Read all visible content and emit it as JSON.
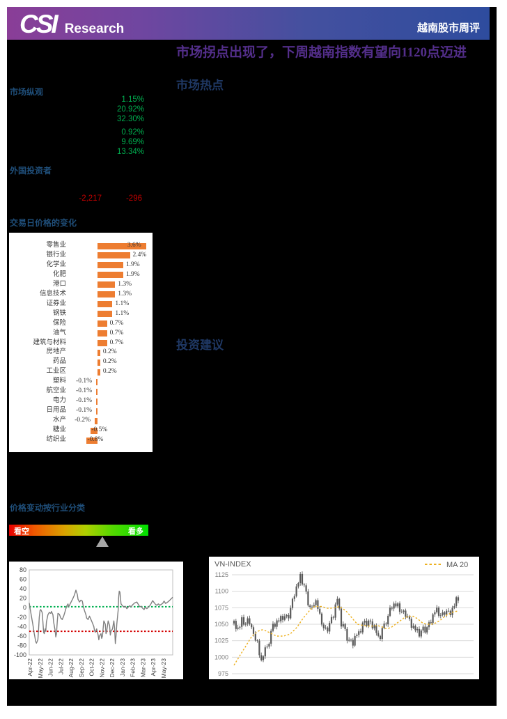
{
  "header": {
    "logo_text": "CSI",
    "logo_sub": "Research",
    "right_title": "越南股市周评"
  },
  "main": {
    "title": "市场拐点出现了，下周越南指数有望向1120点迈进",
    "section_hotspot": "市场热点",
    "section_advice": "投资建议"
  },
  "sidebar": {
    "market_overview": {
      "heading": "市场纵观",
      "group1": [
        "1.15%",
        "20.92%",
        "32.30%"
      ],
      "group2": [
        "0.92%",
        "9.69%",
        "13.34%"
      ]
    },
    "foreign_investors": {
      "heading": "外国投资者",
      "values": [
        "-2,217",
        "-296"
      ]
    },
    "sentiment": {
      "heading": "价格变动按行业分类",
      "left_label": "看空",
      "right_label": "看多",
      "marker_position_pct": 67
    }
  },
  "colors": {
    "accent_orange": "#ed7d31",
    "green": "#00b050",
    "red": "#c00000",
    "heading_blue": "#1f4e79",
    "section_blue": "#1f3864",
    "title_purple": "#532e8a",
    "ma_gold": "#edb120",
    "candle_gray": "#595959",
    "line_gray": "#7f7f7f"
  },
  "chart_data": [
    {
      "type": "bar",
      "title": "交易日价格的变化",
      "orientation": "horizontal",
      "categories": [
        "零售业",
        "银行业",
        "化学业",
        "化肥",
        "港口",
        "信息技术",
        "证券业",
        "钢铁",
        "保险",
        "油气",
        "建筑与材料",
        "房地产",
        "药品",
        "工业区",
        "塑料",
        "航空业",
        "电力",
        "日用品",
        "水产",
        "糖业",
        "纺织业"
      ],
      "values": [
        3.6,
        2.4,
        1.9,
        1.9,
        1.3,
        1.3,
        1.1,
        1.1,
        0.7,
        0.7,
        0.7,
        0.2,
        0.2,
        0.2,
        -0.1,
        -0.1,
        -0.1,
        -0.1,
        -0.2,
        -0.5,
        -0.8
      ],
      "labels": [
        "3.6%",
        "2.4%",
        "1.9%",
        "1.9%",
        "1.3%",
        "1.3%",
        "1.1%",
        "1.1%",
        "0.7%",
        "0.7%",
        "0.7%",
        "0.2%",
        "0.2%",
        "0.2%",
        "-0.1%",
        "-0.1%",
        "-0.1%",
        "-0.1%",
        "-0.2%",
        "-0.5%",
        "-0.8%"
      ],
      "bar_color": "#ed7d31"
    },
    {
      "type": "line",
      "title": "",
      "ylim": [
        -100,
        80
      ],
      "yticks": [
        80,
        60,
        40,
        20,
        0,
        -20,
        -40,
        -60,
        -80,
        -100
      ],
      "x_labels": [
        "Apr-22",
        "May-22",
        "Jun-22",
        "Jul-22",
        "Aug-22",
        "Sep-22",
        "Oct-22",
        "Nov-22",
        "Dec-22",
        "Jan-23",
        "Feb-23",
        "Mar-23",
        "Apr-23",
        "May-23"
      ],
      "ref_lines": [
        {
          "value": 2,
          "color": "#00b050"
        },
        {
          "value": -50,
          "color": "#d40000"
        }
      ],
      "line_color": "#7f7f7f",
      "points": [
        [
          0,
          10
        ],
        [
          0.008,
          -5
        ],
        [
          0.015,
          -18
        ],
        [
          0.025,
          -35
        ],
        [
          0.035,
          -55
        ],
        [
          0.045,
          -72
        ],
        [
          0.05,
          -75
        ],
        [
          0.06,
          -68
        ],
        [
          0.065,
          -45
        ],
        [
          0.07,
          -20
        ],
        [
          0.075,
          -6
        ],
        [
          0.08,
          -4
        ],
        [
          0.09,
          -10
        ],
        [
          0.095,
          -30
        ],
        [
          0.1,
          -52
        ],
        [
          0.105,
          -55
        ],
        [
          0.11,
          -45
        ],
        [
          0.115,
          -50
        ],
        [
          0.12,
          -30
        ],
        [
          0.13,
          -15
        ],
        [
          0.14,
          -10
        ],
        [
          0.15,
          -12
        ],
        [
          0.155,
          -8
        ],
        [
          0.165,
          -15
        ],
        [
          0.17,
          -30
        ],
        [
          0.18,
          -48
        ],
        [
          0.185,
          -62
        ],
        [
          0.19,
          -55
        ],
        [
          0.195,
          -30
        ],
        [
          0.2,
          -12
        ],
        [
          0.21,
          -14
        ],
        [
          0.22,
          -22
        ],
        [
          0.23,
          -25
        ],
        [
          0.24,
          -18
        ],
        [
          0.25,
          -8
        ],
        [
          0.26,
          3
        ],
        [
          0.27,
          8
        ],
        [
          0.275,
          2
        ],
        [
          0.285,
          8
        ],
        [
          0.295,
          14
        ],
        [
          0.305,
          20
        ],
        [
          0.315,
          27
        ],
        [
          0.325,
          37
        ],
        [
          0.335,
          28
        ],
        [
          0.34,
          18
        ],
        [
          0.35,
          12
        ],
        [
          0.36,
          16
        ],
        [
          0.37,
          14
        ],
        [
          0.375,
          5
        ],
        [
          0.385,
          -6
        ],
        [
          0.395,
          -15
        ],
        [
          0.4,
          -22
        ],
        [
          0.41,
          -25
        ],
        [
          0.42,
          -18
        ],
        [
          0.43,
          -25
        ],
        [
          0.44,
          -32
        ],
        [
          0.45,
          -40
        ],
        [
          0.455,
          -48
        ],
        [
          0.46,
          -52
        ],
        [
          0.47,
          -45
        ],
        [
          0.48,
          -58
        ],
        [
          0.485,
          -68
        ],
        [
          0.49,
          -60
        ],
        [
          0.5,
          -55
        ],
        [
          0.505,
          -65
        ],
        [
          0.51,
          -60
        ],
        [
          0.52,
          -28
        ],
        [
          0.53,
          -35
        ],
        [
          0.535,
          -55
        ],
        [
          0.54,
          -50
        ],
        [
          0.55,
          -28
        ],
        [
          0.56,
          -38
        ],
        [
          0.565,
          -58
        ],
        [
          0.57,
          -50
        ],
        [
          0.58,
          -45
        ],
        [
          0.59,
          -28
        ],
        [
          0.595,
          -45
        ],
        [
          0.6,
          -76
        ],
        [
          0.605,
          -60
        ],
        [
          0.61,
          -35
        ],
        [
          0.615,
          -20
        ],
        [
          0.62,
          -5
        ],
        [
          0.623,
          20
        ],
        [
          0.627,
          35
        ],
        [
          0.632,
          33
        ],
        [
          0.64,
          8
        ],
        [
          0.65,
          4
        ],
        [
          0.66,
          1
        ],
        [
          0.67,
          3
        ],
        [
          0.68,
          -2
        ],
        [
          0.69,
          1
        ],
        [
          0.7,
          4
        ],
        [
          0.71,
          2
        ],
        [
          0.72,
          6
        ],
        [
          0.735,
          10
        ],
        [
          0.75,
          12
        ],
        [
          0.76,
          7
        ],
        [
          0.77,
          2
        ],
        [
          0.78,
          3
        ],
        [
          0.79,
          -1
        ],
        [
          0.8,
          -4
        ],
        [
          0.81,
          1
        ],
        [
          0.82,
          -2
        ],
        [
          0.83,
          1
        ],
        [
          0.84,
          4
        ],
        [
          0.85,
          9
        ],
        [
          0.86,
          15
        ],
        [
          0.87,
          11
        ],
        [
          0.88,
          7
        ],
        [
          0.89,
          5
        ],
        [
          0.9,
          8
        ],
        [
          0.91,
          5
        ],
        [
          0.92,
          7
        ],
        [
          0.93,
          9
        ],
        [
          0.94,
          14
        ],
        [
          0.95,
          9
        ],
        [
          0.96,
          11
        ],
        [
          0.97,
          13
        ],
        [
          0.98,
          16
        ],
        [
          1,
          22
        ]
      ]
    },
    {
      "type": "candlestick",
      "title": "VN-INDEX",
      "legend": "MA 20",
      "ylim": [
        975,
        1125
      ],
      "yticks": [
        1125,
        1100,
        1075,
        1050,
        1025,
        1000,
        975
      ],
      "n_bars": 116,
      "close_control_points": [
        [
          0,
          1052
        ],
        [
          0.02,
          1042
        ],
        [
          0.035,
          1056
        ],
        [
          0.05,
          1050
        ],
        [
          0.065,
          1058
        ],
        [
          0.08,
          1042
        ],
        [
          0.09,
          1028
        ],
        [
          0.1,
          1032
        ],
        [
          0.11,
          1012
        ],
        [
          0.12,
          988
        ],
        [
          0.13,
          1004
        ],
        [
          0.14,
          1016
        ],
        [
          0.15,
          1012
        ],
        [
          0.16,
          1030
        ],
        [
          0.17,
          1046
        ],
        [
          0.19,
          1054
        ],
        [
          0.21,
          1058
        ],
        [
          0.23,
          1063
        ],
        [
          0.24,
          1058
        ],
        [
          0.25,
          1070
        ],
        [
          0.27,
          1098
        ],
        [
          0.285,
          1112
        ],
        [
          0.295,
          1122
        ],
        [
          0.305,
          1113
        ],
        [
          0.315,
          1108
        ],
        [
          0.33,
          1082
        ],
        [
          0.345,
          1070
        ],
        [
          0.36,
          1088
        ],
        [
          0.37,
          1082
        ],
        [
          0.38,
          1064
        ],
        [
          0.4,
          1044
        ],
        [
          0.415,
          1040
        ],
        [
          0.43,
          1054
        ],
        [
          0.445,
          1066
        ],
        [
          0.46,
          1092
        ],
        [
          0.47,
          1068
        ],
        [
          0.48,
          1046
        ],
        [
          0.49,
          1052
        ],
        [
          0.5,
          1030
        ],
        [
          0.515,
          1024
        ],
        [
          0.53,
          1022
        ],
        [
          0.545,
          1036
        ],
        [
          0.56,
          1034
        ],
        [
          0.575,
          1054
        ],
        [
          0.59,
          1050
        ],
        [
          0.6,
          1054
        ],
        [
          0.615,
          1049
        ],
        [
          0.63,
          1046
        ],
        [
          0.64,
          1030
        ],
        [
          0.648,
          1024
        ],
        [
          0.66,
          1044
        ],
        [
          0.675,
          1050
        ],
        [
          0.69,
          1064
        ],
        [
          0.7,
          1078
        ],
        [
          0.715,
          1080
        ],
        [
          0.73,
          1077
        ],
        [
          0.745,
          1069
        ],
        [
          0.76,
          1067
        ],
        [
          0.775,
          1060
        ],
        [
          0.79,
          1050
        ],
        [
          0.81,
          1042
        ],
        [
          0.825,
          1034
        ],
        [
          0.84,
          1044
        ],
        [
          0.855,
          1040
        ],
        [
          0.87,
          1050
        ],
        [
          0.885,
          1062
        ],
        [
          0.9,
          1073
        ],
        [
          0.91,
          1067
        ],
        [
          0.925,
          1063
        ],
        [
          0.94,
          1068
        ],
        [
          0.95,
          1069
        ],
        [
          0.96,
          1066
        ],
        [
          0.97,
          1071
        ],
        [
          0.98,
          1077
        ],
        [
          0.995,
          1089
        ]
      ],
      "ma20_control_points": [
        [
          0,
          988
        ],
        [
          0.04,
          1010
        ],
        [
          0.08,
          1032
        ],
        [
          0.11,
          1040
        ],
        [
          0.13,
          1042
        ],
        [
          0.16,
          1037
        ],
        [
          0.19,
          1032
        ],
        [
          0.22,
          1032
        ],
        [
          0.25,
          1035
        ],
        [
          0.28,
          1045
        ],
        [
          0.31,
          1060
        ],
        [
          0.34,
          1072
        ],
        [
          0.36,
          1077
        ],
        [
          0.39,
          1077
        ],
        [
          0.42,
          1074
        ],
        [
          0.45,
          1075
        ],
        [
          0.47,
          1077
        ],
        [
          0.5,
          1070
        ],
        [
          0.53,
          1058
        ],
        [
          0.55,
          1050
        ],
        [
          0.58,
          1048
        ],
        [
          0.61,
          1047
        ],
        [
          0.64,
          1048
        ],
        [
          0.66,
          1046
        ],
        [
          0.68,
          1043
        ],
        [
          0.7,
          1045
        ],
        [
          0.72,
          1050
        ],
        [
          0.74,
          1055
        ],
        [
          0.76,
          1060
        ],
        [
          0.78,
          1062
        ],
        [
          0.8,
          1062
        ],
        [
          0.82,
          1058
        ],
        [
          0.84,
          1052
        ],
        [
          0.86,
          1050
        ],
        [
          0.88,
          1050
        ],
        [
          0.9,
          1052
        ],
        [
          0.92,
          1056
        ],
        [
          0.94,
          1062
        ],
        [
          0.96,
          1066
        ],
        [
          0.98,
          1069
        ],
        [
          1,
          1070
        ]
      ],
      "candle_color": "#595959",
      "ma_color": "#edb120"
    }
  ]
}
